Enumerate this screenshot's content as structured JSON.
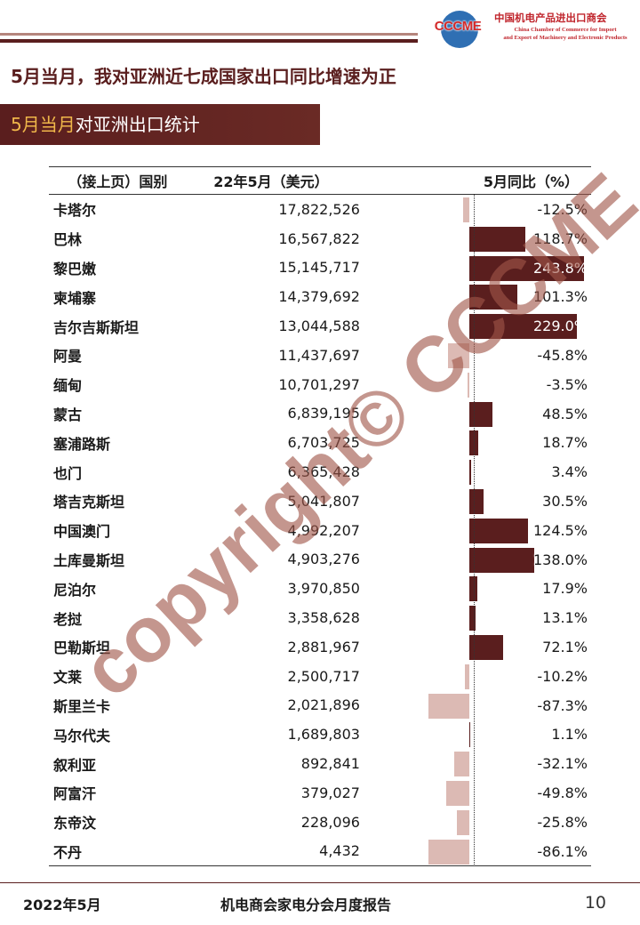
{
  "logo": {
    "mark_text": "CCCME",
    "name_cn": "中国机电产品进出口商会",
    "name_en_line1": "China Chamber of Commerce for Import",
    "name_en_line2": "and Export of Machinery and Electronic Products",
    "colors": {
      "red": "#c0262d",
      "blue": "#2f6fb3"
    }
  },
  "headline": "5月当月，我对亚洲近七成国家出口同比增速为正",
  "banner": {
    "accent": "5月当月",
    "rest": "对亚洲出口统计"
  },
  "table": {
    "headers": [
      "（接上页）国别",
      "22年5月（美元）",
      "5月同比（%）"
    ],
    "rows": [
      {
        "country": "卡塔尔",
        "value": "17,822,526",
        "pct": "-12.5%",
        "pct_num": -12.5
      },
      {
        "country": "巴林",
        "value": "16,567,822",
        "pct": "118.7%",
        "pct_num": 118.7
      },
      {
        "country": "黎巴嫩",
        "value": "15,145,717",
        "pct": "243.8%",
        "pct_num": 243.8
      },
      {
        "country": "柬埔寨",
        "value": "14,379,692",
        "pct": "101.3%",
        "pct_num": 101.3
      },
      {
        "country": "吉尔吉斯斯坦",
        "value": "13,044,588",
        "pct": "229.0%",
        "pct_num": 229.0
      },
      {
        "country": "阿曼",
        "value": "11,437,697",
        "pct": "-45.8%",
        "pct_num": -45.8
      },
      {
        "country": "缅甸",
        "value": "10,701,297",
        "pct": "-3.5%",
        "pct_num": -3.5
      },
      {
        "country": "蒙古",
        "value": "6,839,195",
        "pct": "48.5%",
        "pct_num": 48.5
      },
      {
        "country": "塞浦路斯",
        "value": "6,703,725",
        "pct": "18.7%",
        "pct_num": 18.7
      },
      {
        "country": "也门",
        "value": "6,365,428",
        "pct": "3.4%",
        "pct_num": 3.4
      },
      {
        "country": "塔吉克斯坦",
        "value": "5,041,807",
        "pct": "30.5%",
        "pct_num": 30.5
      },
      {
        "country": "中国澳门",
        "value": "4,992,207",
        "pct": "124.5%",
        "pct_num": 124.5
      },
      {
        "country": "土库曼斯坦",
        "value": "4,903,276",
        "pct": "138.0%",
        "pct_num": 138.0
      },
      {
        "country": "尼泊尔",
        "value": "3,970,850",
        "pct": "17.9%",
        "pct_num": 17.9
      },
      {
        "country": "老挝",
        "value": "3,358,628",
        "pct": "13.1%",
        "pct_num": 13.1
      },
      {
        "country": "巴勒斯坦",
        "value": "2,881,967",
        "pct": "72.1%",
        "pct_num": 72.1
      },
      {
        "country": "文莱",
        "value": "2,500,717",
        "pct": "-10.2%",
        "pct_num": -10.2
      },
      {
        "country": "斯里兰卡",
        "value": "2,021,896",
        "pct": "-87.3%",
        "pct_num": -87.3
      },
      {
        "country": "马尔代夫",
        "value": "1,689,803",
        "pct": "1.1%",
        "pct_num": 1.1
      },
      {
        "country": "叙利亚",
        "value": "892,841",
        "pct": "-32.1%",
        "pct_num": -32.1
      },
      {
        "country": "阿富汗",
        "value": "379,027",
        "pct": "-49.8%",
        "pct_num": -49.8
      },
      {
        "country": "东帝汶",
        "value": "228,096",
        "pct": "-25.8%",
        "pct_num": -25.8
      },
      {
        "country": "不丹",
        "value": "4,432",
        "pct": "-86.1%",
        "pct_num": -86.1
      }
    ],
    "colors": {
      "positive": "#5a1e1e",
      "negative": "#dcbab4"
    }
  },
  "watermark": "copyright© CCCME",
  "footer": {
    "date": "2022年5月",
    "title": "机电商会家电分会月度报告",
    "page": "10"
  }
}
